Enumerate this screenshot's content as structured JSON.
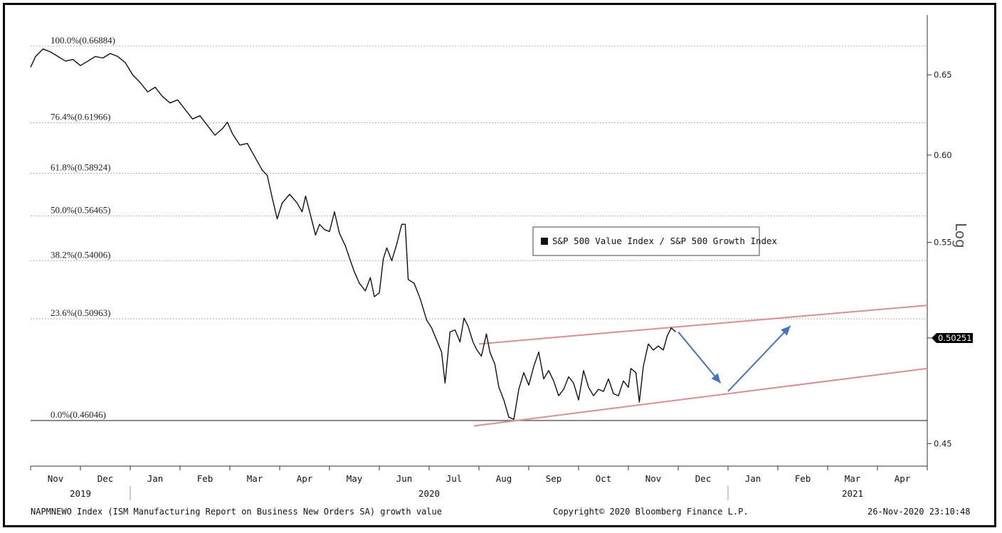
{
  "chart_data": {
    "type": "line",
    "scale": "Log",
    "legend": {
      "label": "S&P 500 Value Index / S&P 500 Growth Index",
      "placement": "center-right"
    },
    "last_value": "0.50251",
    "ylim": [
      0.44,
      0.69
    ],
    "y_ticks": [
      {
        "value": 0.45,
        "label": "0.45"
      },
      {
        "value": 0.5,
        "label": "0.50"
      },
      {
        "value": 0.55,
        "label": "0.55"
      },
      {
        "value": 0.6,
        "label": "0.60"
      },
      {
        "value": 0.65,
        "label": "0.65"
      }
    ],
    "fib_levels": [
      {
        "value": 0.66884,
        "label": "100.0%(0.66884)"
      },
      {
        "value": 0.61966,
        "label": "76.4%(0.61966)"
      },
      {
        "value": 0.58924,
        "label": "61.8%(0.58924)"
      },
      {
        "value": 0.56465,
        "label": "50.0%(0.56465)"
      },
      {
        "value": 0.54006,
        "label": "38.2%(0.54006)"
      },
      {
        "value": 0.50963,
        "label": "23.6%(0.50963)"
      },
      {
        "value": 0.46046,
        "label": "0.0%(0.46046)"
      }
    ],
    "xlim": [
      0,
      18
    ],
    "x_months": [
      {
        "pos": 0.5,
        "label": "Nov"
      },
      {
        "pos": 1.5,
        "label": "Dec"
      },
      {
        "pos": 2.5,
        "label": "Jan"
      },
      {
        "pos": 3.5,
        "label": "Feb"
      },
      {
        "pos": 4.5,
        "label": "Mar"
      },
      {
        "pos": 5.5,
        "label": "Apr"
      },
      {
        "pos": 6.5,
        "label": "May"
      },
      {
        "pos": 7.5,
        "label": "Jun"
      },
      {
        "pos": 8.5,
        "label": "Jul"
      },
      {
        "pos": 9.5,
        "label": "Aug"
      },
      {
        "pos": 10.5,
        "label": "Sep"
      },
      {
        "pos": 11.5,
        "label": "Oct"
      },
      {
        "pos": 12.5,
        "label": "Nov"
      },
      {
        "pos": 13.5,
        "label": "Dec"
      },
      {
        "pos": 14.5,
        "label": "Jan"
      },
      {
        "pos": 15.5,
        "label": "Feb"
      },
      {
        "pos": 16.5,
        "label": "Mar"
      },
      {
        "pos": 17.5,
        "label": "Apr"
      }
    ],
    "x_years": [
      {
        "pos": 1.0,
        "label": "2019"
      },
      {
        "pos": 8.0,
        "label": "2020"
      },
      {
        "pos": 16.5,
        "label": "2021"
      }
    ],
    "year_dividers": [
      2,
      14
    ],
    "series": [
      {
        "points": [
          [
            0.0,
            0.655
          ],
          [
            0.1,
            0.662
          ],
          [
            0.25,
            0.667
          ],
          [
            0.4,
            0.665
          ],
          [
            0.55,
            0.662
          ],
          [
            0.7,
            0.659
          ],
          [
            0.85,
            0.66
          ],
          [
            1.0,
            0.656
          ],
          [
            1.15,
            0.659
          ],
          [
            1.3,
            0.662
          ],
          [
            1.45,
            0.661
          ],
          [
            1.6,
            0.664
          ],
          [
            1.75,
            0.662
          ],
          [
            1.9,
            0.658
          ],
          [
            2.05,
            0.65
          ],
          [
            2.2,
            0.645
          ],
          [
            2.35,
            0.639
          ],
          [
            2.5,
            0.642
          ],
          [
            2.65,
            0.636
          ],
          [
            2.8,
            0.632
          ],
          [
            2.95,
            0.634
          ],
          [
            3.1,
            0.628
          ],
          [
            3.25,
            0.622
          ],
          [
            3.4,
            0.624
          ],
          [
            3.55,
            0.618
          ],
          [
            3.7,
            0.612
          ],
          [
            3.85,
            0.616
          ],
          [
            3.95,
            0.62
          ],
          [
            4.05,
            0.613
          ],
          [
            4.2,
            0.606
          ],
          [
            4.35,
            0.607
          ],
          [
            4.5,
            0.599
          ],
          [
            4.65,
            0.591
          ],
          [
            4.75,
            0.588
          ],
          [
            4.85,
            0.575
          ],
          [
            4.95,
            0.563
          ],
          [
            5.05,
            0.572
          ],
          [
            5.2,
            0.577
          ],
          [
            5.35,
            0.572
          ],
          [
            5.45,
            0.567
          ],
          [
            5.52,
            0.576
          ],
          [
            5.62,
            0.565
          ],
          [
            5.72,
            0.554
          ],
          [
            5.8,
            0.56
          ],
          [
            5.9,
            0.557
          ],
          [
            6.0,
            0.556
          ],
          [
            6.1,
            0.567
          ],
          [
            6.2,
            0.555
          ],
          [
            6.32,
            0.548
          ],
          [
            6.42,
            0.54
          ],
          [
            6.5,
            0.534
          ],
          [
            6.6,
            0.528
          ],
          [
            6.72,
            0.524
          ],
          [
            6.82,
            0.531
          ],
          [
            6.9,
            0.521
          ],
          [
            7.0,
            0.523
          ],
          [
            7.08,
            0.541
          ],
          [
            7.15,
            0.547
          ],
          [
            7.25,
            0.54
          ],
          [
            7.35,
            0.549
          ],
          [
            7.45,
            0.56
          ],
          [
            7.52,
            0.56
          ],
          [
            7.58,
            0.53
          ],
          [
            7.7,
            0.528
          ],
          [
            7.82,
            0.52
          ],
          [
            7.95,
            0.509
          ],
          [
            8.05,
            0.505
          ],
          [
            8.15,
            0.499
          ],
          [
            8.25,
            0.493
          ],
          [
            8.32,
            0.478
          ],
          [
            8.42,
            0.503
          ],
          [
            8.52,
            0.504
          ],
          [
            8.62,
            0.498
          ],
          [
            8.7,
            0.51
          ],
          [
            8.78,
            0.506
          ],
          [
            8.88,
            0.498
          ],
          [
            8.96,
            0.494
          ],
          [
            9.05,
            0.491
          ],
          [
            9.15,
            0.502
          ],
          [
            9.22,
            0.493
          ],
          [
            9.32,
            0.487
          ],
          [
            9.4,
            0.476
          ],
          [
            9.5,
            0.47
          ],
          [
            9.6,
            0.462
          ],
          [
            9.7,
            0.461
          ],
          [
            9.8,
            0.475
          ],
          [
            9.9,
            0.483
          ],
          [
            10.0,
            0.477
          ],
          [
            10.1,
            0.486
          ],
          [
            10.2,
            0.493
          ],
          [
            10.3,
            0.48
          ],
          [
            10.4,
            0.484
          ],
          [
            10.5,
            0.479
          ],
          [
            10.6,
            0.472
          ],
          [
            10.7,
            0.475
          ],
          [
            10.8,
            0.481
          ],
          [
            10.9,
            0.478
          ],
          [
            11.0,
            0.47
          ],
          [
            11.1,
            0.484
          ],
          [
            11.2,
            0.476
          ],
          [
            11.3,
            0.472
          ],
          [
            11.4,
            0.475
          ],
          [
            11.5,
            0.474
          ],
          [
            11.6,
            0.48
          ],
          [
            11.7,
            0.473
          ],
          [
            11.8,
            0.472
          ],
          [
            11.9,
            0.479
          ],
          [
            12.0,
            0.476
          ],
          [
            12.05,
            0.485
          ],
          [
            12.15,
            0.483
          ],
          [
            12.22,
            0.469
          ],
          [
            12.3,
            0.486
          ],
          [
            12.4,
            0.497
          ],
          [
            12.5,
            0.494
          ],
          [
            12.6,
            0.496
          ],
          [
            12.7,
            0.494
          ],
          [
            12.78,
            0.501
          ],
          [
            12.86,
            0.505
          ],
          [
            12.95,
            0.503
          ]
        ]
      }
    ],
    "channel_lines": [
      {
        "from": [
          9.0,
          0.497
        ],
        "to": [
          18.0,
          0.5165
        ]
      },
      {
        "from": [
          8.9,
          0.458
        ],
        "to": [
          18.0,
          0.485
        ]
      }
    ],
    "arrows": [
      {
        "from": [
          13.0,
          0.503
        ],
        "to": [
          13.85,
          0.478
        ],
        "color": "#4472c4"
      },
      {
        "from": [
          14.0,
          0.474
        ],
        "to": [
          15.25,
          0.506
        ],
        "color": "#4472c4"
      }
    ],
    "colors": {
      "series": "#111111",
      "channel": "#e28d8d",
      "arrows": "#4472c4",
      "grid": "#b0b0b0"
    }
  },
  "footer": {
    "left": "NAPMNEWO Index (ISM Manufacturing Report on Business New Orders SA) growth value",
    "center": "Copyright© 2020 Bloomberg Finance L.P.",
    "right": "26-Nov-2020 23:10:48"
  }
}
